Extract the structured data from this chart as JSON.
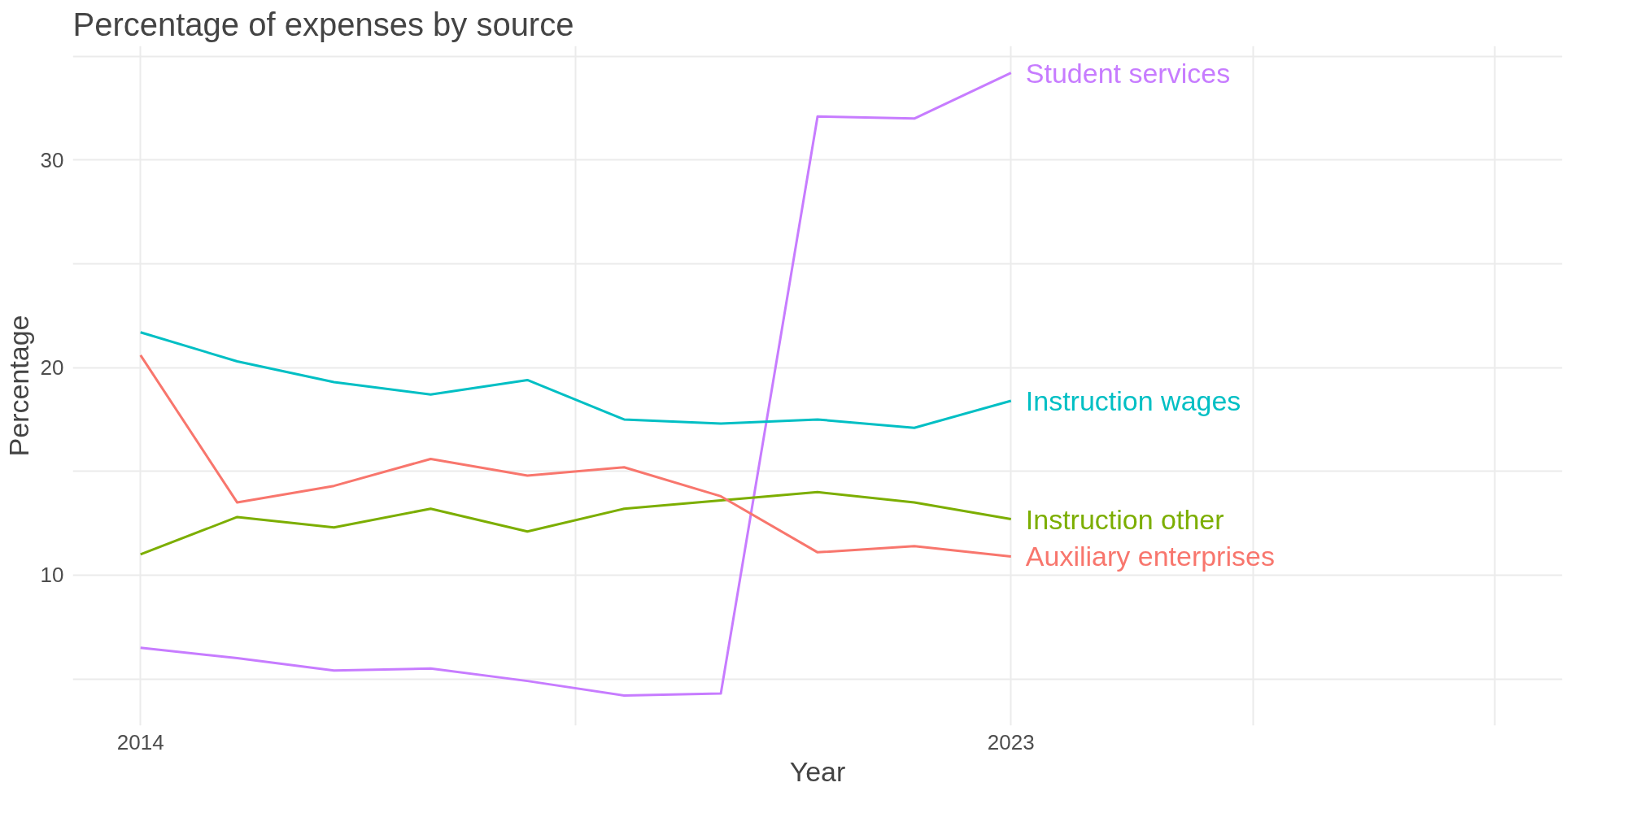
{
  "chart_data": {
    "type": "line",
    "title": "Percentage of expenses by source",
    "xlabel": "Year",
    "ylabel": "Percentage",
    "x": [
      2014,
      2015,
      2016,
      2017,
      2018,
      2019,
      2020,
      2021,
      2022,
      2023
    ],
    "series": [
      {
        "name": "Student services",
        "color": "#c77cff",
        "values": [
          6.5,
          6.0,
          5.4,
          5.5,
          4.9,
          4.2,
          4.3,
          32.1,
          32.0,
          34.2
        ]
      },
      {
        "name": "Instruction wages",
        "color": "#00bfc4",
        "values": [
          21.7,
          20.3,
          19.3,
          18.7,
          19.4,
          17.5,
          17.3,
          17.5,
          17.1,
          18.4
        ]
      },
      {
        "name": "Instruction other",
        "color": "#7cae00",
        "values": [
          11.0,
          12.8,
          12.3,
          13.2,
          12.1,
          13.2,
          13.6,
          14.0,
          13.5,
          12.7
        ]
      },
      {
        "name": "Auxiliary enterprises",
        "color": "#f8766d",
        "values": [
          20.6,
          13.5,
          14.3,
          15.6,
          14.8,
          15.2,
          13.8,
          11.1,
          11.4,
          10.9
        ]
      }
    ],
    "xlim": [
      2013.3,
      2028.7
    ],
    "xticks": [
      2014,
      {
        "value": 2018.5,
        "label": null
      },
      2023,
      {
        "value": 2025.5,
        "label": null
      },
      {
        "value": 2028,
        "label": null
      }
    ],
    "ylim": [
      2.75,
      35.5
    ],
    "yticks": [
      {
        "value": 5,
        "label": null
      },
      10,
      {
        "value": 15,
        "label": null
      },
      20,
      {
        "value": 25,
        "label": null
      },
      30,
      {
        "value": 35,
        "label": null
      }
    ],
    "grid": true,
    "legend": false,
    "line_style": "solid",
    "marker": "none"
  }
}
